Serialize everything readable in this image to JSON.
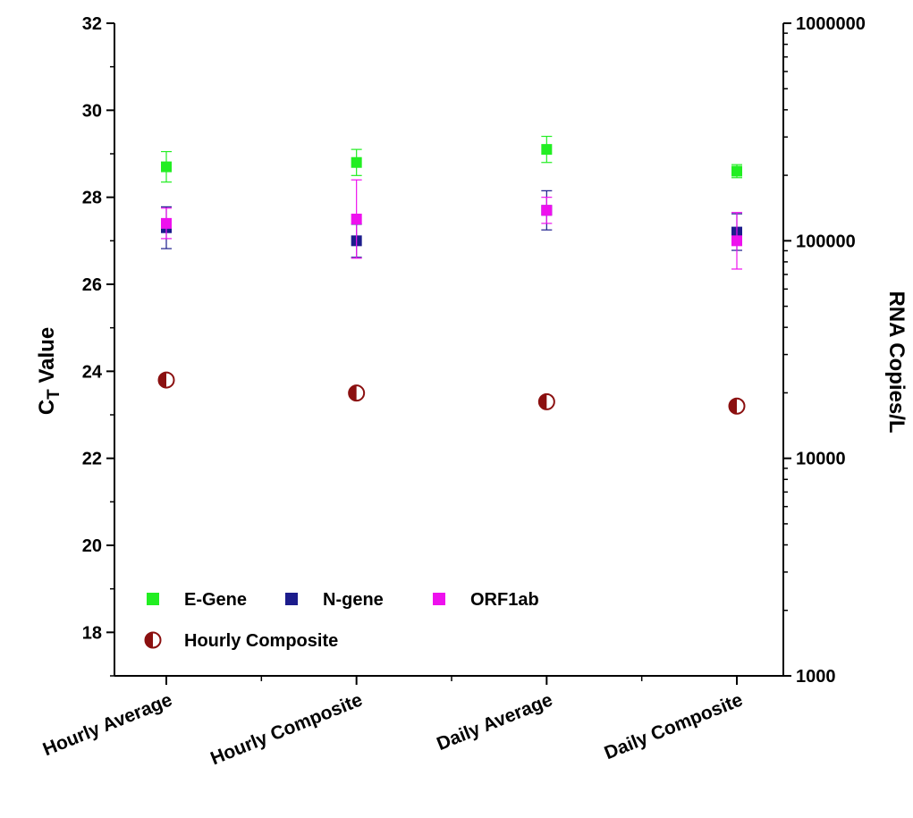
{
  "chart_data": {
    "type": "scatter",
    "categories": [
      "Hourly Average",
      "Hourly Composite",
      "Daily Average",
      "Daily Composite"
    ],
    "left_axis": {
      "label_main": "C",
      "label_sub": "T",
      "label_rest": " Value",
      "ylim": [
        17,
        32
      ],
      "ticks": [
        18,
        20,
        22,
        24,
        26,
        28,
        30,
        32
      ],
      "tick_labels": [
        "18",
        "20",
        "22",
        "24",
        "26",
        "28",
        "30",
        "32"
      ]
    },
    "right_axis": {
      "label": "RNA Copies/L",
      "scale": "log",
      "ylim": [
        1000,
        1000000
      ],
      "ticks": [
        1000,
        10000,
        100000,
        1000000
      ],
      "tick_labels": [
        "1000",
        "10000",
        "100000",
        "1000000"
      ]
    },
    "series": [
      {
        "name": "E-Gene",
        "axis": "left",
        "marker": "square",
        "color": "#22ee22",
        "values": [
          28.7,
          28.8,
          29.1,
          28.6
        ],
        "errors": [
          0.35,
          0.3,
          0.3,
          0.15
        ]
      },
      {
        "name": "N-gene",
        "axis": "left",
        "marker": "square",
        "color": "#1c1c8c",
        "values": [
          27.3,
          27.0,
          27.7,
          27.2
        ],
        "errors": [
          0.48,
          0.38,
          0.45,
          0.42
        ]
      },
      {
        "name": "ORF1ab",
        "axis": "left",
        "marker": "square",
        "color": "#ee11ee",
        "values": [
          27.4,
          27.5,
          27.7,
          27.0
        ],
        "errors": [
          0.35,
          0.9,
          0.3,
          0.65
        ]
      },
      {
        "name": "Hourly Composite",
        "axis": "left",
        "marker": "half-circle",
        "color": "#8b1010",
        "values": [
          23.8,
          23.5,
          23.3,
          23.2
        ],
        "errors": [
          0,
          0,
          0,
          0
        ]
      }
    ],
    "legend": {
      "placement": "bottom-left",
      "rows": [
        [
          "E-Gene",
          "N-gene",
          "ORF1ab"
        ],
        [
          "Hourly Composite"
        ]
      ]
    },
    "grid": false
  }
}
